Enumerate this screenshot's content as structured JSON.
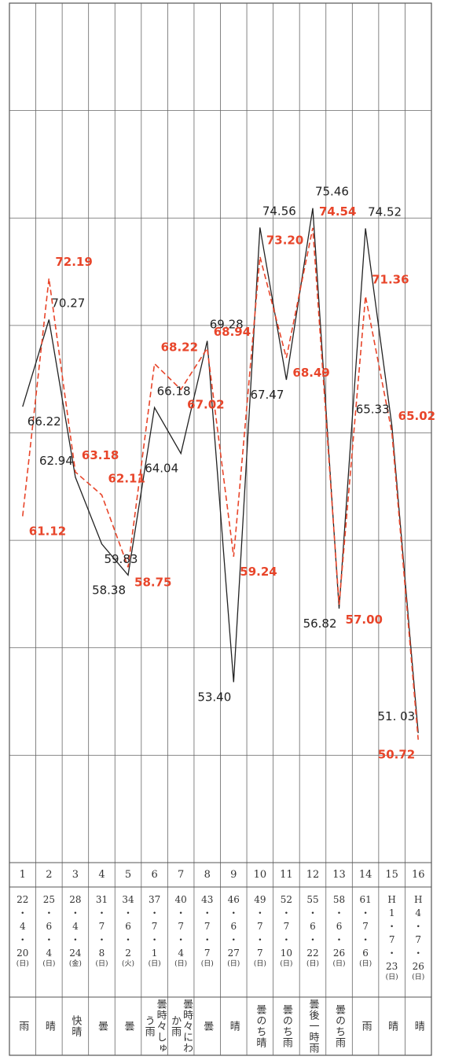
{
  "chart_data": {
    "type": "line",
    "ylim": [
      45,
      85
    ],
    "categories": [
      "1",
      "2",
      "3",
      "4",
      "5",
      "6",
      "7",
      "8",
      "9",
      "10",
      "11",
      "12",
      "13",
      "14",
      "15",
      "16"
    ],
    "series": [
      {
        "color": "#222222",
        "style": "solid",
        "values": [
          66.22,
          70.27,
          62.94,
          59.83,
          58.38,
          66.18,
          64.04,
          69.28,
          53.4,
          74.56,
          67.47,
          75.46,
          56.82,
          74.52,
          65.33,
          51.03
        ],
        "labels": [
          "66.22",
          "70.27",
          "62.94",
          "59.83",
          "58.38",
          "66.18",
          "64.04",
          "69.28",
          "53.40",
          "74.56",
          "67.47",
          "75.46",
          "56.82",
          "74.52",
          "65.33",
          "51. 03"
        ]
      },
      {
        "color": "#e8452a",
        "style": "dashed",
        "values": [
          61.12,
          72.19,
          63.18,
          62.11,
          58.75,
          68.22,
          67.02,
          68.94,
          59.24,
          73.2,
          68.49,
          74.54,
          57.0,
          71.36,
          65.02,
          50.72
        ],
        "labels": [
          "61.12",
          "72.19",
          "63.18",
          "62.11",
          "58.75",
          "68.22",
          "67.02",
          "68.94",
          "59.24",
          "73.20",
          "68.49",
          "74.54",
          "57.00",
          "71.36",
          "65.02",
          "50.72"
        ]
      }
    ],
    "dates": [
      [
        "22",
        "・",
        "4",
        "・",
        "20",
        "(日)"
      ],
      [
        "25",
        "・",
        "6",
        "・",
        "4",
        "(日)"
      ],
      [
        "28",
        "・",
        "4",
        "・",
        "24",
        "(金)"
      ],
      [
        "31",
        "・",
        "7",
        "・",
        "8",
        "(日)"
      ],
      [
        "34",
        "・",
        "6",
        "・",
        "2",
        "(火)"
      ],
      [
        "37",
        "・",
        "7",
        "・",
        "1",
        "(日)"
      ],
      [
        "40",
        "・",
        "7",
        "・",
        "4",
        "(日)"
      ],
      [
        "43",
        "・",
        "7",
        "・",
        "7",
        "(日)"
      ],
      [
        "46",
        "・",
        "6",
        "・",
        "27",
        "(日)"
      ],
      [
        "49",
        "・",
        "7",
        "・",
        "7",
        "(日)"
      ],
      [
        "52",
        "・",
        "7",
        "・",
        "10",
        "(日)"
      ],
      [
        "55",
        "・",
        "6",
        "・",
        "22",
        "(日)"
      ],
      [
        "58",
        "・",
        "6",
        "・",
        "26",
        "(日)"
      ],
      [
        "61",
        "・",
        "7",
        "・",
        "6",
        "(日)"
      ],
      [
        "H",
        "1",
        "・",
        "7",
        "・",
        "23",
        "(日)"
      ],
      [
        "H",
        "4",
        "・",
        "7",
        "・",
        "26",
        "(日)"
      ]
    ],
    "weather": [
      "雨",
      "晴",
      "快晴",
      "曇",
      "曇",
      "曇時々しゅう雨",
      "曇時々にわか雨",
      "曇",
      "晴",
      "曇のち晴",
      "曇のち雨",
      "曇後一時雨",
      "曇のち雨",
      "雨",
      "晴",
      "晴"
    ],
    "grid": true
  }
}
